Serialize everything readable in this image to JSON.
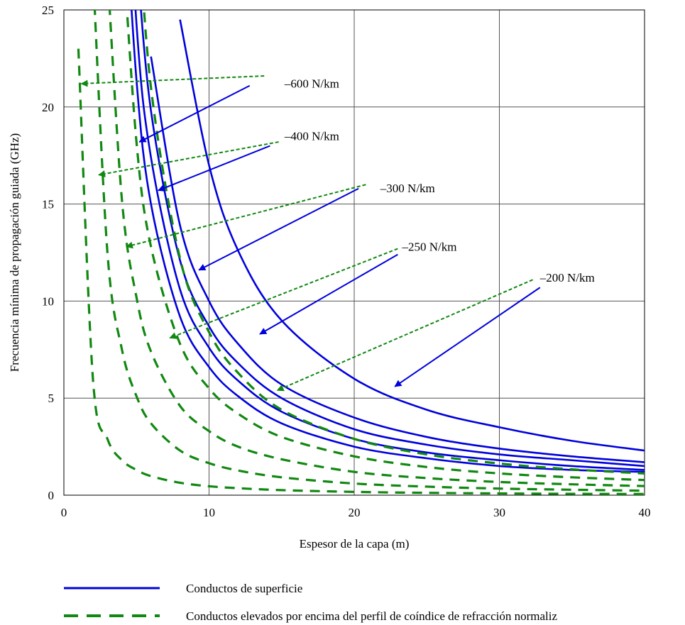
{
  "chart_data": {
    "type": "line",
    "title": "",
    "xlabel": "Espesor de la capa (m)",
    "ylabel": "Frecuencia mínima de propagación guiada (GHz)",
    "xlim": [
      0,
      40
    ],
    "ylim": [
      0,
      25
    ],
    "x_ticks": [
      "0",
      "10",
      "20",
      "30",
      "40"
    ],
    "y_ticks": [
      "0",
      "5",
      "10",
      "15",
      "20",
      "25"
    ],
    "grid": true,
    "colors": {
      "surface": "#0000dd",
      "elevated": "#118811"
    },
    "legend": {
      "position": "bottom",
      "entries": [
        {
          "style": "solid",
          "color": "#0000dd",
          "label": "Conductos de superficie"
        },
        {
          "style": "dashed",
          "color": "#118811",
          "label": "Conductos elevados por encima del perfil de coíndice de refracción normaliz"
        }
      ]
    },
    "x": [
      1,
      2,
      3,
      4,
      5,
      6,
      8,
      10,
      12,
      15,
      20,
      25,
      30,
      35,
      40
    ],
    "series": [
      {
        "group": "surface",
        "style": "solid",
        "values": [
          null,
          null,
          null,
          33.2,
          21.4,
          15.0,
          9.2,
          6.6,
          5.1,
          3.7,
          2.5,
          1.9,
          1.5,
          1.3,
          1.2
        ]
      },
      {
        "group": "surface",
        "style": "solid",
        "values": [
          null,
          null,
          null,
          38.6,
          24.3,
          17.4,
          10.6,
          7.6,
          5.9,
          4.3,
          2.9,
          2.2,
          1.8,
          1.5,
          1.3
        ]
      },
      {
        "group": "surface",
        "style": "solid",
        "values": [
          null,
          null,
          null,
          null,
          28.0,
          19.8,
          12.1,
          8.7,
          6.8,
          5.0,
          3.4,
          2.6,
          2.1,
          1.8,
          1.5
        ]
      },
      {
        "group": "surface",
        "style": "solid",
        "values": [
          null,
          null,
          null,
          null,
          null,
          22.6,
          13.9,
          10.0,
          7.8,
          5.7,
          4.0,
          3.0,
          2.4,
          2.0,
          1.7
        ]
      },
      {
        "group": "surface",
        "style": "solid",
        "values": [
          null,
          null,
          null,
          null,
          null,
          null,
          24.5,
          17.0,
          12.6,
          9.0,
          6.0,
          4.4,
          3.5,
          2.8,
          2.3
        ]
      },
      {
        "group": "elevated",
        "style": "dashed",
        "values": [
          23.0,
          6.0,
          2.9,
          1.8,
          1.3,
          0.98,
          0.64,
          0.46,
          0.36,
          0.26,
          0.17,
          0.12,
          0.09,
          0.07,
          0.06
        ]
      },
      {
        "group": "elevated",
        "style": "dashed",
        "values": [
          null,
          27.0,
          12.5,
          7.5,
          5.1,
          3.7,
          2.3,
          1.65,
          1.27,
          0.92,
          0.6,
          0.44,
          0.34,
          0.28,
          0.23
        ]
      },
      {
        "group": "elevated",
        "style": "dashed",
        "values": [
          null,
          null,
          27.0,
          15.2,
          10.2,
          7.4,
          4.6,
          3.3,
          2.5,
          1.85,
          1.2,
          0.88,
          0.68,
          0.56,
          0.47
        ]
      },
      {
        "group": "elevated",
        "style": "dashed",
        "values": [
          null,
          null,
          null,
          29.0,
          18.2,
          12.8,
          7.8,
          5.5,
          4.2,
          3.0,
          2.0,
          1.45,
          1.12,
          0.92,
          0.78
        ]
      },
      {
        "group": "elevated",
        "style": "dashed",
        "values": [
          null,
          null,
          null,
          null,
          31.0,
          21.0,
          12.2,
          8.4,
          6.3,
          4.4,
          2.9,
          2.1,
          1.63,
          1.33,
          1.12
        ]
      }
    ],
    "annotations": [
      {
        "label": "–600 N/km",
        "text_at": [
          15.2,
          21.0
        ],
        "solid_arrow": {
          "from": [
            12.8,
            21.1
          ],
          "to": [
            5.2,
            18.2
          ]
        },
        "dashed_arrow": {
          "from": [
            13.8,
            21.6
          ],
          "to": [
            1.2,
            21.2
          ]
        }
      },
      {
        "label": "–400 N/km",
        "text_at": [
          15.2,
          18.3
        ],
        "solid_arrow": {
          "from": [
            14.2,
            18.0
          ],
          "to": [
            6.5,
            15.7
          ]
        },
        "dashed_arrow": {
          "from": [
            14.8,
            18.2
          ],
          "to": [
            2.4,
            16.5
          ]
        }
      },
      {
        "label": "–300 N/km",
        "text_at": [
          21.8,
          15.6
        ],
        "solid_arrow": {
          "from": [
            20.3,
            15.8
          ],
          "to": [
            9.3,
            11.6
          ]
        },
        "dashed_arrow": {
          "from": [
            20.8,
            16.0
          ],
          "to": [
            4.3,
            12.8
          ]
        }
      },
      {
        "label": "–250 N/km",
        "text_at": [
          23.3,
          12.6
        ],
        "solid_arrow": {
          "from": [
            23.0,
            12.4
          ],
          "to": [
            13.5,
            8.3
          ]
        },
        "dashed_arrow": {
          "from": [
            23.0,
            12.7
          ],
          "to": [
            7.3,
            8.1
          ]
        }
      },
      {
        "label": "–200 N/km",
        "text_at": [
          32.8,
          11.0
        ],
        "solid_arrow": {
          "from": [
            32.8,
            10.7
          ],
          "to": [
            22.8,
            5.6
          ]
        },
        "dashed_arrow": {
          "from": [
            32.3,
            11.1
          ],
          "to": [
            14.7,
            5.4
          ]
        }
      }
    ]
  }
}
